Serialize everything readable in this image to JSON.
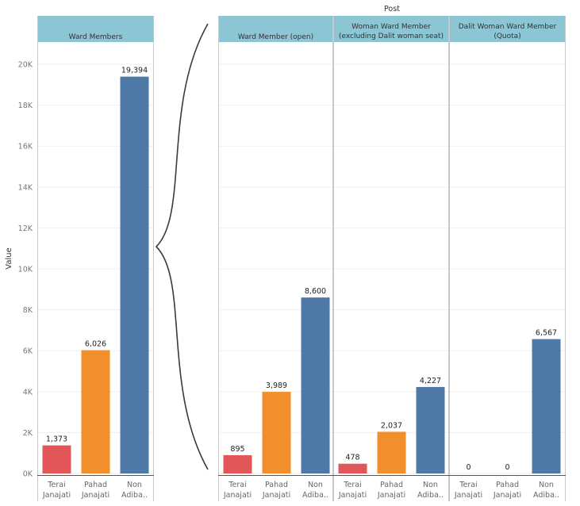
{
  "chart_data": {
    "type": "bar",
    "ylabel": "Value",
    "ylim": [
      0,
      21000
    ],
    "y_ticks": [
      {
        "value": 0,
        "label": "0K"
      },
      {
        "value": 2000,
        "label": "2K"
      },
      {
        "value": 4000,
        "label": "4K"
      },
      {
        "value": 6000,
        "label": "6K"
      },
      {
        "value": 8000,
        "label": "8K"
      },
      {
        "value": 10000,
        "label": "10K"
      },
      {
        "value": 12000,
        "label": "12K"
      },
      {
        "value": 14000,
        "label": "14K"
      },
      {
        "value": 16000,
        "label": "16K"
      },
      {
        "value": 18000,
        "label": "18K"
      },
      {
        "value": 20000,
        "label": "20K"
      }
    ],
    "grid": true,
    "group_header": "Post",
    "categories": [
      {
        "label": [
          "Terai",
          "Janajati"
        ],
        "color": "#e15759"
      },
      {
        "label": [
          "Pahad",
          "Janajati"
        ],
        "color": "#f28e2b"
      },
      {
        "label": [
          "Non",
          "Adiba.."
        ],
        "color": "#4e79a7"
      }
    ],
    "panels": [
      {
        "title": [
          "Ward Members"
        ],
        "values": [
          1373,
          6026,
          19394
        ],
        "value_labels": [
          "1,373",
          "6,026",
          "19,394"
        ]
      },
      {
        "title": [
          "Ward Member (open)"
        ],
        "values": [
          895,
          3989,
          8600
        ],
        "value_labels": [
          "895",
          "3,989",
          "8,600"
        ]
      },
      {
        "title": [
          "Woman Ward Member",
          "(excluding Dalit woman seat)"
        ],
        "values": [
          478,
          2037,
          4227
        ],
        "value_labels": [
          "478",
          "2,037",
          "4,227"
        ]
      },
      {
        "title": [
          "Dalit Woman Ward Member",
          "(Quota)"
        ],
        "values": [
          0,
          0,
          6567
        ],
        "value_labels": [
          "0",
          "0",
          "6,567"
        ]
      }
    ]
  }
}
